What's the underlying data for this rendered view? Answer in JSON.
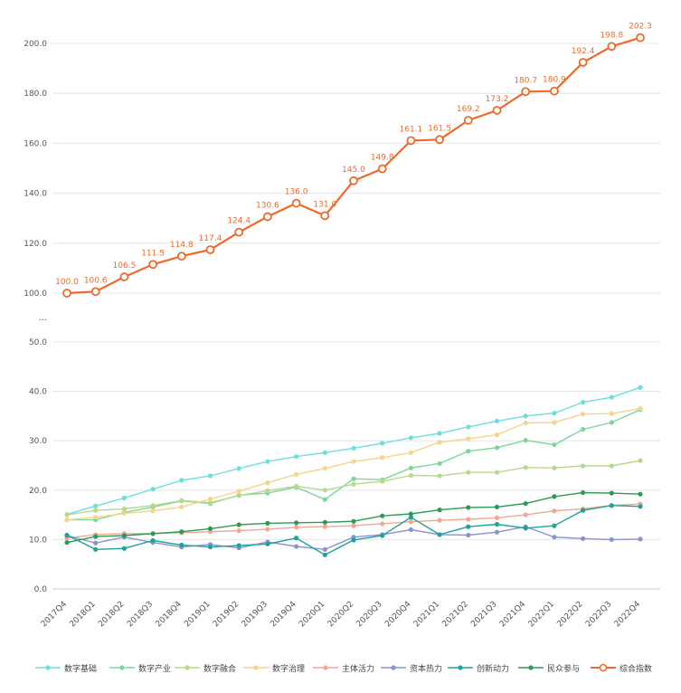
{
  "chart_data": {
    "type": "line",
    "title": "",
    "xlabel": "",
    "ylabel": "",
    "y_break": "...",
    "categories": [
      "2017Q4",
      "2018Q1",
      "2018Q2",
      "2018Q3",
      "2018Q4",
      "2019Q1",
      "2019Q2",
      "2019Q3",
      "2019Q4",
      "2020Q1",
      "2020Q2",
      "2020Q3",
      "2020Q4",
      "2021Q1",
      "2021Q2",
      "2021Q3",
      "2021Q4",
      "2022Q1",
      "2022Q2",
      "2022Q3",
      "2022Q4"
    ],
    "upper_axis": {
      "ylim": [
        100,
        200
      ],
      "ticks": [
        "100.0",
        "120.0",
        "140.0",
        "160.0",
        "180.0",
        "200.0"
      ]
    },
    "lower_axis": {
      "ylim": [
        0,
        50
      ],
      "ticks": [
        "0.0",
        "10.0",
        "20.0",
        "30.0",
        "40.0",
        "50.0"
      ]
    },
    "grid": true,
    "legend": "bottom",
    "series": [
      {
        "name": "数字基础",
        "color": "#6fdfdc",
        "panel": "lower",
        "values": [
          15.1,
          16.8,
          18.4,
          20.2,
          22.0,
          22.9,
          24.4,
          25.8,
          26.8,
          27.6,
          28.5,
          29.5,
          30.6,
          31.5,
          32.8,
          34.0,
          35.0,
          35.6,
          37.8,
          38.8,
          40.8
        ]
      },
      {
        "name": "数字产业",
        "color": "#7fd59e",
        "panel": "lower",
        "values": [
          14.0,
          14.0,
          15.5,
          16.6,
          17.8,
          17.3,
          19.0,
          19.4,
          20.6,
          18.1,
          22.3,
          22.1,
          24.5,
          25.4,
          27.9,
          28.6,
          30.1,
          29.2,
          32.3,
          33.7,
          36.3
        ]
      },
      {
        "name": "数字融合",
        "color": "#b8d98c",
        "panel": "lower",
        "values": [
          15.0,
          15.9,
          16.2,
          16.9,
          17.9,
          17.5,
          18.9,
          19.9,
          20.8,
          20.0,
          21.2,
          21.8,
          23.0,
          22.9,
          23.6,
          23.6,
          24.6,
          24.5,
          24.9,
          24.9,
          26.0
        ]
      },
      {
        "name": "数字治理",
        "color": "#f5d48c",
        "panel": "lower",
        "values": [
          14.0,
          14.5,
          15.3,
          15.8,
          16.6,
          18.2,
          19.8,
          21.5,
          23.2,
          24.4,
          25.8,
          26.6,
          27.6,
          29.7,
          30.4,
          31.2,
          33.6,
          33.7,
          35.4,
          35.5,
          36.5
        ]
      },
      {
        "name": "主体活力",
        "color": "#eda994",
        "panel": "lower",
        "values": [
          10.3,
          11.0,
          11.2,
          11.2,
          11.4,
          11.6,
          11.8,
          12.1,
          12.5,
          12.6,
          12.8,
          13.2,
          13.6,
          13.9,
          14.1,
          14.4,
          15.0,
          15.8,
          16.2,
          16.9,
          17.2
        ]
      },
      {
        "name": "资本热力",
        "color": "#8a93cf",
        "panel": "lower",
        "values": [
          10.8,
          9.3,
          10.5,
          9.4,
          8.5,
          9.0,
          8.3,
          9.5,
          8.6,
          8.0,
          10.5,
          11.0,
          12.0,
          11.0,
          10.9,
          11.5,
          12.6,
          10.5,
          10.2,
          10.0,
          10.1
        ]
      },
      {
        "name": "创新动力",
        "color": "#1ea39a",
        "panel": "lower",
        "values": [
          10.9,
          8.0,
          8.2,
          9.8,
          8.9,
          8.5,
          8.8,
          9.1,
          10.3,
          6.9,
          9.9,
          10.8,
          14.5,
          11.0,
          12.6,
          13.1,
          12.3,
          12.8,
          15.9,
          16.9,
          16.7
        ]
      },
      {
        "name": "民众参与",
        "color": "#2e9a55",
        "panel": "lower",
        "values": [
          9.4,
          10.6,
          10.8,
          11.2,
          11.6,
          12.2,
          13.0,
          13.3,
          13.4,
          13.5,
          13.7,
          14.8,
          15.2,
          16.0,
          16.5,
          16.6,
          17.3,
          18.7,
          19.5,
          19.4,
          19.2
        ]
      },
      {
        "name": "综合指数",
        "color": "#ec6a2c",
        "panel": "upper",
        "values": [
          100.0,
          100.6,
          106.5,
          111.5,
          114.8,
          117.4,
          124.4,
          130.6,
          136.0,
          131.0,
          145.0,
          149.8,
          161.1,
          161.5,
          169.2,
          173.2,
          180.7,
          180.9,
          192.4,
          198.8,
          202.3
        ],
        "data_labels": [
          "100.0",
          "100.6",
          "106.5",
          "111.5",
          "114.8",
          "117.4",
          "124.4",
          "130.6",
          "136.0",
          "131.0",
          "145.0",
          "149.8",
          "161.1",
          "161.5",
          "169.2",
          "173.2",
          "180.7",
          "180.9",
          "192.4",
          "198.8",
          "202.3"
        ]
      }
    ]
  }
}
